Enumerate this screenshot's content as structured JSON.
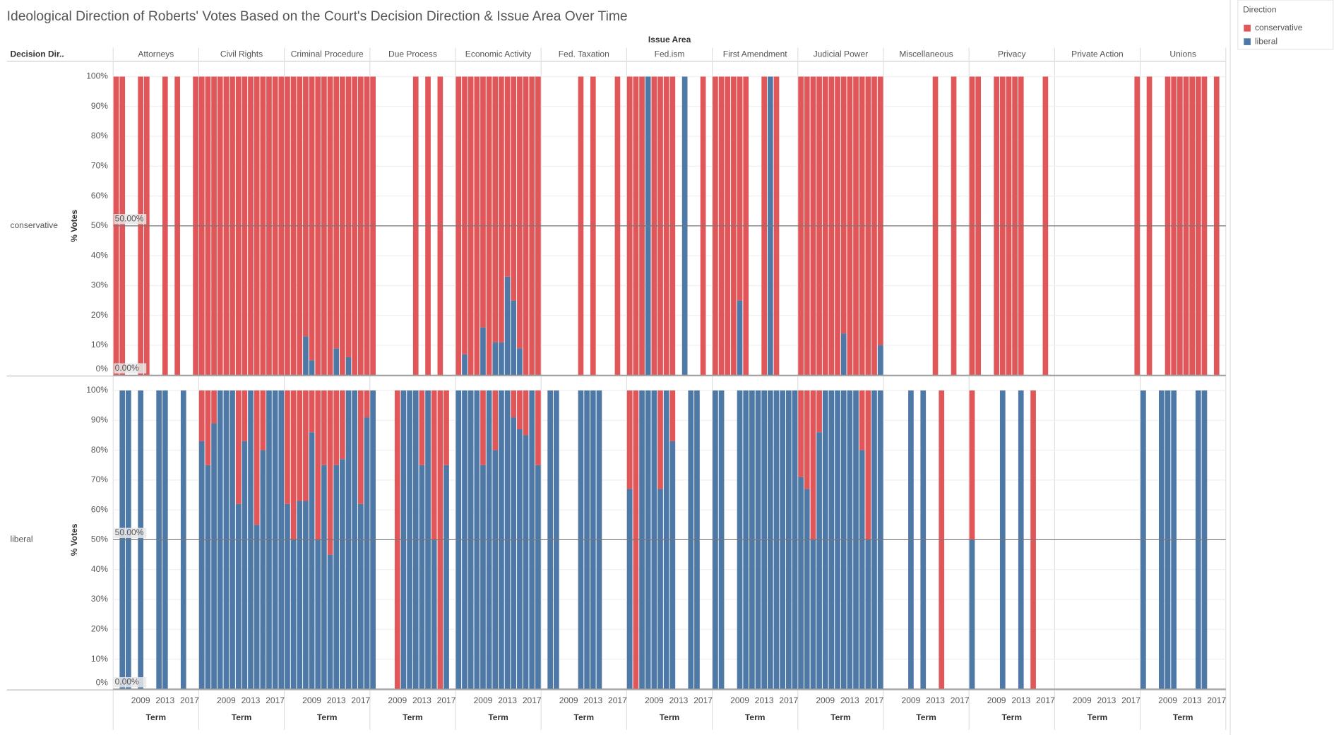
{
  "chart_data": {
    "type": "bar",
    "title": "Ideological Direction of Roberts' Votes Based on the Court's Decision Direction & Issue Area Over Time",
    "column_header": "Issue Area",
    "row_header": "Decision Dir..",
    "y_label": "% Votes",
    "x_label": "Term",
    "legend_title": "Direction",
    "series": [
      {
        "name": "conservative",
        "color": "#e15759"
      },
      {
        "name": "liberal",
        "color": "#4e79a7"
      }
    ],
    "issue_areas": [
      "Attorneys",
      "Civil Rights",
      "Criminal Procedure",
      "Due Process",
      "Economic Activity",
      "Fed. Taxation",
      "Fed.ism",
      "First Amendment",
      "Judicial Power",
      "Miscellaneous",
      "Privacy",
      "Private Action",
      "Unions"
    ],
    "decision_directions": [
      "conservative",
      "liberal"
    ],
    "x": [
      2005,
      2006,
      2007,
      2008,
      2009,
      2010,
      2011,
      2012,
      2013,
      2014,
      2015,
      2016,
      2017,
      2018
    ],
    "xticks": [
      2009,
      2013,
      2017
    ],
    "ylim": [
      0,
      100
    ],
    "yticks": [
      {
        "value": 0,
        "label": "0%"
      },
      {
        "value": 10,
        "label": "10%"
      },
      {
        "value": 20,
        "label": "20%"
      },
      {
        "value": 30,
        "label": "30%"
      },
      {
        "value": 40,
        "label": "40%"
      },
      {
        "value": 50,
        "label": "50%"
      },
      {
        "value": 60,
        "label": "60%"
      },
      {
        "value": 70,
        "label": "70%"
      },
      {
        "value": 80,
        "label": "80%"
      },
      {
        "value": 90,
        "label": "90%"
      },
      {
        "value": 100,
        "label": "100%"
      }
    ],
    "grid": true,
    "reference_labels": [
      {
        "value": 50,
        "label": "50.00%"
      },
      {
        "value": 0,
        "label": "0.00%"
      }
    ],
    "panels": [
      [
        {
          "conservative": [
            100,
            100,
            null,
            null,
            100,
            100,
            null,
            null,
            100,
            null,
            100,
            null,
            null,
            100
          ],
          "liberal": [
            0,
            0,
            null,
            null,
            0,
            0,
            null,
            null,
            0,
            null,
            0,
            null,
            null,
            0
          ]
        },
        {
          "conservative": [
            100,
            100,
            100,
            100,
            100,
            100,
            100,
            100,
            100,
            100,
            100,
            100,
            100,
            100
          ],
          "liberal": [
            0,
            0,
            0,
            0,
            0,
            0,
            0,
            0,
            0,
            0,
            0,
            0,
            0,
            0
          ]
        },
        {
          "conservative": [
            100,
            100,
            100,
            87,
            95,
            100,
            100,
            100,
            91,
            100,
            94,
            100,
            100,
            100
          ],
          "liberal": [
            0,
            0,
            0,
            13,
            5,
            0,
            0,
            0,
            9,
            0,
            6,
            0,
            0,
            0
          ]
        },
        {
          "conservative": [
            100,
            null,
            null,
            null,
            null,
            null,
            null,
            100,
            null,
            100,
            null,
            100,
            null,
            null
          ],
          "liberal": [
            0,
            null,
            null,
            null,
            null,
            null,
            null,
            0,
            null,
            0,
            null,
            0,
            null,
            null
          ]
        },
        {
          "conservative": [
            100,
            93,
            100,
            100,
            84,
            100,
            89,
            89,
            67,
            75,
            91,
            100,
            100,
            100
          ],
          "liberal": [
            0,
            7,
            0,
            0,
            16,
            0,
            11,
            11,
            33,
            25,
            9,
            0,
            0,
            0
          ]
        },
        {
          "conservative": [
            null,
            null,
            null,
            null,
            null,
            null,
            100,
            null,
            100,
            null,
            null,
            null,
            100,
            null
          ],
          "liberal": [
            null,
            null,
            null,
            null,
            null,
            null,
            0,
            null,
            0,
            null,
            null,
            null,
            0,
            null
          ]
        },
        {
          "conservative": [
            100,
            100,
            100,
            0,
            100,
            100,
            100,
            100,
            null,
            0,
            null,
            null,
            100,
            null
          ],
          "liberal": [
            0,
            0,
            0,
            100,
            0,
            0,
            0,
            0,
            null,
            100,
            null,
            null,
            0,
            null
          ]
        },
        {
          "conservative": [
            100,
            100,
            100,
            100,
            75,
            100,
            null,
            null,
            100,
            0,
            100,
            null,
            null,
            null
          ],
          "liberal": [
            0,
            0,
            0,
            0,
            25,
            0,
            null,
            null,
            0,
            100,
            0,
            null,
            null,
            null
          ]
        },
        {
          "conservative": [
            100,
            100,
            100,
            100,
            100,
            100,
            100,
            86,
            100,
            100,
            100,
            100,
            100,
            90
          ],
          "liberal": [
            0,
            0,
            0,
            0,
            0,
            0,
            0,
            14,
            0,
            0,
            0,
            0,
            0,
            10
          ]
        },
        {
          "conservative": [
            null,
            null,
            null,
            null,
            null,
            null,
            null,
            null,
            100,
            null,
            null,
            100,
            null,
            null
          ],
          "liberal": [
            null,
            null,
            null,
            null,
            null,
            null,
            null,
            null,
            0,
            null,
            null,
            0,
            null,
            null
          ]
        },
        {
          "conservative": [
            100,
            100,
            null,
            null,
            100,
            100,
            100,
            100,
            100,
            null,
            null,
            null,
            100,
            null
          ],
          "liberal": [
            0,
            0,
            null,
            null,
            0,
            0,
            0,
            0,
            0,
            null,
            null,
            null,
            0,
            null
          ]
        },
        {
          "conservative": [
            null,
            null,
            null,
            null,
            null,
            null,
            null,
            null,
            null,
            null,
            null,
            null,
            null,
            100
          ],
          "liberal": [
            null,
            null,
            null,
            null,
            null,
            null,
            null,
            null,
            null,
            null,
            null,
            null,
            null,
            0
          ]
        },
        {
          "conservative": [
            null,
            100,
            null,
            null,
            100,
            100,
            100,
            100,
            100,
            100,
            100,
            null,
            100,
            null
          ],
          "liberal": [
            null,
            0,
            null,
            null,
            0,
            0,
            0,
            0,
            0,
            0,
            0,
            null,
            0,
            null
          ]
        }
      ],
      [
        {
          "conservative": [
            null,
            0,
            0,
            null,
            0,
            null,
            null,
            0,
            0,
            null,
            null,
            0,
            null,
            null
          ],
          "liberal": [
            null,
            100,
            100,
            null,
            100,
            null,
            null,
            100,
            100,
            null,
            null,
            100,
            null,
            null
          ]
        },
        {
          "conservative": [
            17,
            25,
            11,
            0,
            0,
            0,
            38,
            17,
            0,
            45,
            20,
            0,
            0,
            0
          ],
          "liberal": [
            83,
            75,
            89,
            100,
            100,
            100,
            62,
            83,
            100,
            55,
            80,
            100,
            100,
            100
          ]
        },
        {
          "conservative": [
            38,
            50,
            37,
            37,
            14,
            50,
            25,
            55,
            25,
            23,
            0,
            0,
            38,
            9
          ],
          "liberal": [
            62,
            50,
            63,
            63,
            86,
            50,
            75,
            45,
            75,
            77,
            100,
            100,
            62,
            91
          ]
        },
        {
          "conservative": [
            0,
            null,
            null,
            null,
            100,
            0,
            0,
            0,
            25,
            0,
            50,
            100,
            25,
            null
          ],
          "liberal": [
            100,
            null,
            null,
            null,
            0,
            100,
            100,
            100,
            75,
            100,
            50,
            0,
            75,
            null
          ]
        },
        {
          "conservative": [
            0,
            0,
            0,
            0,
            25,
            0,
            20,
            0,
            0,
            9,
            13,
            15,
            0,
            25
          ],
          "liberal": [
            100,
            100,
            100,
            100,
            75,
            100,
            80,
            100,
            100,
            91,
            87,
            85,
            100,
            75
          ]
        },
        {
          "conservative": [
            null,
            0,
            0,
            null,
            null,
            null,
            0,
            0,
            0,
            0,
            null,
            null,
            null,
            null
          ],
          "liberal": [
            null,
            100,
            100,
            null,
            null,
            null,
            100,
            100,
            100,
            100,
            null,
            null,
            null,
            null
          ]
        },
        {
          "conservative": [
            33,
            100,
            0,
            0,
            0,
            33,
            0,
            17,
            null,
            null,
            0,
            0,
            null,
            null
          ],
          "liberal": [
            67,
            0,
            100,
            100,
            100,
            67,
            100,
            83,
            null,
            null,
            100,
            100,
            null,
            null
          ]
        },
        {
          "conservative": [
            0,
            0,
            null,
            null,
            0,
            0,
            0,
            0,
            0,
            0,
            0,
            0,
            0,
            0
          ],
          "liberal": [
            100,
            100,
            null,
            null,
            100,
            100,
            100,
            100,
            100,
            100,
            100,
            100,
            100,
            100
          ]
        },
        {
          "conservative": [
            29,
            33,
            50,
            14,
            0,
            0,
            0,
            0,
            0,
            0,
            20,
            50,
            0,
            0
          ],
          "liberal": [
            71,
            67,
            50,
            86,
            100,
            100,
            100,
            100,
            100,
            100,
            80,
            50,
            100,
            100
          ]
        },
        {
          "conservative": [
            null,
            null,
            null,
            null,
            0,
            null,
            0,
            null,
            null,
            100,
            null,
            null,
            null,
            null
          ],
          "liberal": [
            null,
            null,
            null,
            null,
            100,
            null,
            100,
            null,
            null,
            0,
            null,
            null,
            null,
            null
          ]
        },
        {
          "conservative": [
            50,
            null,
            null,
            null,
            null,
            0,
            null,
            null,
            0,
            null,
            100,
            null,
            null,
            null
          ],
          "liberal": [
            50,
            null,
            null,
            null,
            null,
            100,
            null,
            null,
            100,
            null,
            0,
            null,
            null,
            null
          ]
        },
        {
          "conservative": [
            null,
            null,
            null,
            null,
            null,
            null,
            null,
            null,
            null,
            null,
            null,
            null,
            null,
            null
          ],
          "liberal": [
            null,
            null,
            null,
            null,
            null,
            null,
            null,
            null,
            null,
            null,
            null,
            null,
            null,
            null
          ]
        },
        {
          "conservative": [
            0,
            null,
            null,
            0,
            0,
            0,
            null,
            null,
            null,
            0,
            0,
            null,
            null,
            null
          ],
          "liberal": [
            100,
            null,
            null,
            100,
            100,
            100,
            null,
            null,
            null,
            100,
            100,
            null,
            null,
            null
          ]
        }
      ]
    ]
  }
}
